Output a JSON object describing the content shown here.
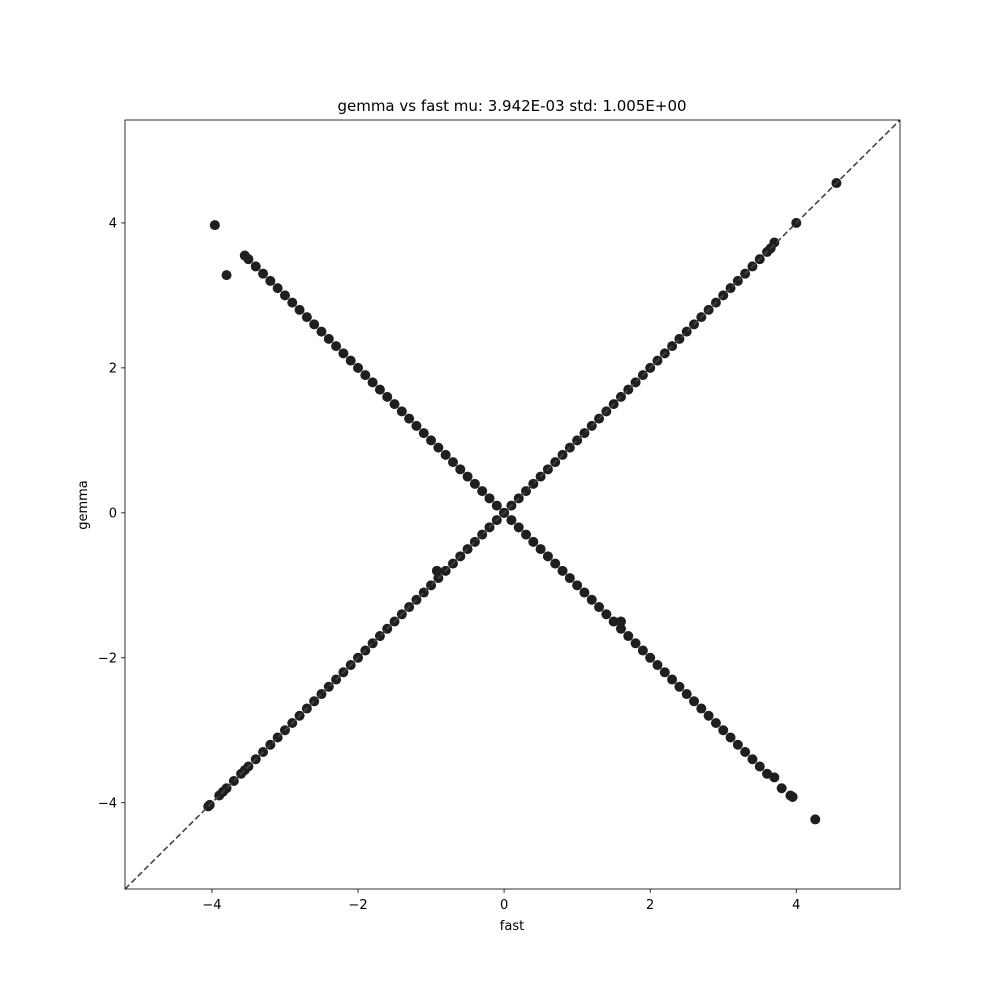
{
  "chart_data": {
    "type": "scatter",
    "title": "gemma vs fast mu: 3.942E-03 std: 1.005E+00",
    "xlabel": "fast",
    "ylabel": "gemma",
    "xlim": [
      -5.19,
      5.42
    ],
    "ylim": [
      -5.19,
      5.42
    ],
    "xticks": [
      {
        "value": -4,
        "label": "−4"
      },
      {
        "value": -2,
        "label": "−2"
      },
      0,
      2,
      4
    ],
    "yticks": [
      {
        "value": -4,
        "label": "−4"
      },
      {
        "value": -2,
        "label": "−2"
      },
      0,
      2,
      4
    ],
    "grid": false,
    "series": [
      {
        "color": "#1f1f1f",
        "x": [
          -4.05,
          -4.03,
          -3.9,
          -3.85,
          -3.8,
          -3.7,
          -3.6,
          -3.55,
          -3.5,
          -3.4,
          -3.3,
          -3.2,
          -3.1,
          -3.0,
          -2.9,
          -2.8,
          -2.7,
          -2.6,
          -2.5,
          -2.4,
          -2.3,
          -2.2,
          -2.1,
          -2.0,
          -1.9,
          -1.8,
          -1.7,
          -1.6,
          -1.5,
          -1.4,
          -1.3,
          -1.2,
          -1.1,
          -1.0,
          -0.92,
          -0.9,
          -0.8,
          -0.7,
          -0.6,
          -0.5,
          -0.4,
          -0.3,
          -0.2,
          -0.1,
          0,
          0.1,
          0.2,
          0.3,
          0.4,
          0.5,
          0.6,
          0.7,
          0.8,
          0.9,
          1.0,
          1.1,
          1.2,
          1.3,
          1.4,
          1.5,
          1.6,
          1.7,
          1.8,
          1.9,
          2.0,
          2.1,
          2.2,
          2.3,
          2.4,
          2.5,
          2.6,
          2.7,
          2.8,
          2.9,
          3.0,
          3.1,
          3.2,
          3.3,
          3.4,
          3.5,
          3.6,
          3.65,
          3.7,
          4.0,
          4.55
        ],
        "values": [
          -4.05,
          -4.03,
          -3.9,
          -3.85,
          -3.8,
          -3.7,
          -3.6,
          -3.55,
          -3.5,
          -3.4,
          -3.3,
          -3.2,
          -3.1,
          -3.0,
          -2.9,
          -2.8,
          -2.7,
          -2.6,
          -2.5,
          -2.4,
          -2.3,
          -2.2,
          -2.1,
          -2.0,
          -1.9,
          -1.8,
          -1.7,
          -1.6,
          -1.5,
          -1.4,
          -1.3,
          -1.2,
          -1.1,
          -1.0,
          -0.8,
          -0.9,
          -0.8,
          -0.7,
          -0.6,
          -0.5,
          -0.4,
          -0.3,
          -0.2,
          -0.1,
          0,
          0.1,
          0.2,
          0.3,
          0.4,
          0.5,
          0.6,
          0.7,
          0.8,
          0.9,
          1.0,
          1.1,
          1.2,
          1.3,
          1.4,
          1.5,
          1.6,
          1.7,
          1.8,
          1.9,
          2.0,
          2.1,
          2.2,
          2.3,
          2.4,
          2.5,
          2.6,
          2.7,
          2.8,
          2.9,
          3.0,
          3.1,
          3.2,
          3.3,
          3.4,
          3.5,
          3.6,
          3.65,
          3.73,
          4.0,
          4.55
        ]
      },
      {
        "color": "#1f1f1f",
        "x": [
          -3.96,
          -3.8,
          -3.55,
          -3.5,
          -3.4,
          -3.3,
          -3.2,
          -3.1,
          -3.0,
          -2.9,
          -2.8,
          -2.7,
          -2.6,
          -2.5,
          -2.4,
          -2.3,
          -2.2,
          -2.1,
          -2.0,
          -1.9,
          -1.8,
          -1.7,
          -1.6,
          -1.5,
          -1.4,
          -1.3,
          -1.2,
          -1.1,
          -1.0,
          -0.9,
          -0.8,
          -0.7,
          -0.6,
          -0.5,
          -0.4,
          -0.3,
          -0.2,
          -0.1,
          0,
          0.1,
          0.2,
          0.3,
          0.4,
          0.5,
          0.6,
          0.7,
          0.8,
          0.9,
          1.0,
          1.1,
          1.2,
          1.3,
          1.4,
          1.5,
          1.6,
          1.6,
          1.7,
          1.8,
          1.9,
          2.0,
          2.1,
          2.2,
          2.3,
          2.4,
          2.5,
          2.6,
          2.7,
          2.8,
          2.9,
          3.0,
          3.1,
          3.2,
          3.3,
          3.4,
          3.5,
          3.6,
          3.7,
          3.8,
          3.92,
          3.95,
          4.26
        ],
        "values": [
          3.97,
          3.28,
          3.55,
          3.5,
          3.4,
          3.3,
          3.2,
          3.1,
          3.0,
          2.9,
          2.8,
          2.7,
          2.6,
          2.5,
          2.4,
          2.3,
          2.2,
          2.1,
          2.0,
          1.9,
          1.8,
          1.7,
          1.6,
          1.5,
          1.4,
          1.3,
          1.2,
          1.1,
          1.0,
          0.9,
          0.8,
          0.7,
          0.6,
          0.5,
          0.4,
          0.3,
          0.2,
          0.1,
          0,
          -0.1,
          -0.2,
          -0.3,
          -0.4,
          -0.5,
          -0.6,
          -0.7,
          -0.8,
          -0.9,
          -1.0,
          -1.1,
          -1.2,
          -1.3,
          -1.4,
          -1.5,
          -1.5,
          -1.6,
          -1.7,
          -1.8,
          -1.9,
          -2.0,
          -2.1,
          -2.2,
          -2.3,
          -2.4,
          -2.5,
          -2.6,
          -2.7,
          -2.8,
          -2.9,
          -3.0,
          -3.1,
          -3.2,
          -3.3,
          -3.4,
          -3.5,
          -3.6,
          -3.65,
          -3.8,
          -3.9,
          -3.92,
          -4.23
        ]
      }
    ]
  }
}
